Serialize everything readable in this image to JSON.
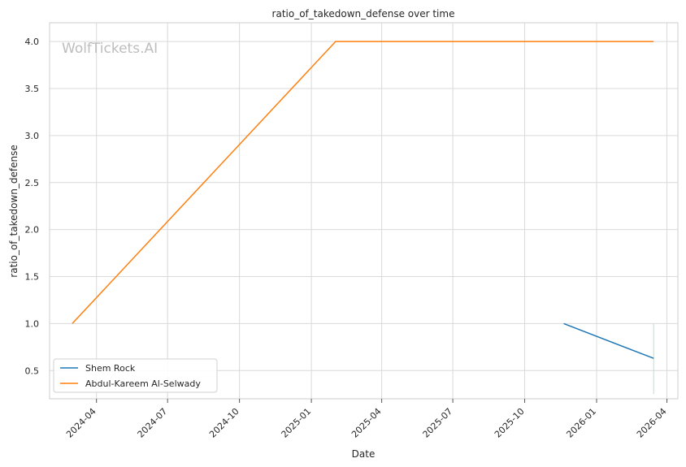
{
  "chart_data": {
    "type": "line",
    "title": "ratio_of_takedown_defense over time",
    "xlabel": "Date",
    "ylabel": "ratio_of_takedown_defense",
    "watermark": "WolfTickets.AI",
    "x_ticks": [
      "2024-04",
      "2024-07",
      "2024-10",
      "2025-01",
      "2025-04",
      "2025-07",
      "2025-10",
      "2026-01",
      "2026-04"
    ],
    "y_ticks": [
      "0.5",
      "1.0",
      "1.5",
      "2.0",
      "2.5",
      "3.0",
      "3.5",
      "4.0"
    ],
    "xlim": [
      "2024-02-01",
      "2026-04-15"
    ],
    "ylim": [
      0.2,
      4.2
    ],
    "grid": true,
    "legend_position": "lower-left",
    "series": [
      {
        "name": "Shem Rock",
        "color": "#1f77b4",
        "points": [
          {
            "x": "2025-11-20",
            "y": 1.0
          },
          {
            "x": "2026-03-15",
            "y": 0.63
          }
        ],
        "error_bar": {
          "x": "2026-03-15",
          "low": 0.25,
          "high": 1.0
        }
      },
      {
        "name": "Abdul-Kareem Al-Selwady",
        "color": "#ff7f0e",
        "points": [
          {
            "x": "2024-03-01",
            "y": 1.0
          },
          {
            "x": "2025-02-01",
            "y": 4.0
          },
          {
            "x": "2026-03-15",
            "y": 4.0
          }
        ]
      }
    ]
  }
}
